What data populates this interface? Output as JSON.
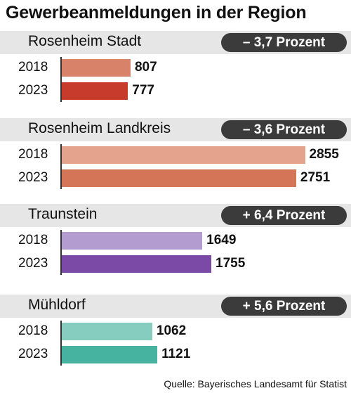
{
  "chart_data": {
    "type": "bar",
    "title": "Gewerbeanmeldungen in der Region",
    "source": "Quelle: Bayerisches Landesamt für Statist",
    "xlim": [
      0,
      2900
    ],
    "groups": [
      {
        "name": "Rosenheim Stadt",
        "change": "– 3,7 Prozent",
        "bars": [
          {
            "year": "2018",
            "value": 807,
            "color": "#d9826a"
          },
          {
            "year": "2023",
            "value": 777,
            "color": "#c73b2c"
          }
        ]
      },
      {
        "name": "Rosenheim Landkreis",
        "change": "– 3,6 Prozent",
        "bars": [
          {
            "year": "2018",
            "value": 2855,
            "color": "#e3a38c"
          },
          {
            "year": "2023",
            "value": 2751,
            "color": "#d47558"
          }
        ]
      },
      {
        "name": "Traunstein",
        "change": "+ 6,4 Prozent",
        "bars": [
          {
            "year": "2018",
            "value": 1649,
            "color": "#b39ccf"
          },
          {
            "year": "2023",
            "value": 1755,
            "color": "#7a4aa6"
          }
        ]
      },
      {
        "name": "Mühldorf",
        "change": "+ 5,6 Prozent",
        "bars": [
          {
            "year": "2018",
            "value": 1062,
            "color": "#86cdc0"
          },
          {
            "year": "2023",
            "value": 1121,
            "color": "#45b3a0"
          }
        ]
      }
    ]
  }
}
